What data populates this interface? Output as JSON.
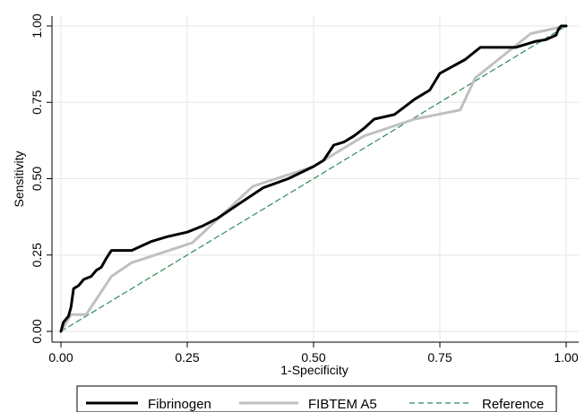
{
  "chart_data": {
    "type": "line",
    "title": "",
    "xlabel": "1-Specificity",
    "ylabel": "Sensitivity",
    "xlim": [
      0,
      1
    ],
    "ylim": [
      0,
      1
    ],
    "x_ticks": [
      "0.00",
      "0.25",
      "0.50",
      "0.75",
      "1.00"
    ],
    "y_ticks": [
      "0.00",
      "0.25",
      "0.50",
      "0.75",
      "1.00"
    ],
    "grid": true,
    "legend_position": "bottom",
    "series": [
      {
        "name": "Fibrinogen",
        "color": "#000000",
        "points": [
          [
            0.0,
            0.0
          ],
          [
            0.005,
            0.03
          ],
          [
            0.01,
            0.04
          ],
          [
            0.015,
            0.05
          ],
          [
            0.02,
            0.08
          ],
          [
            0.025,
            0.14
          ],
          [
            0.035,
            0.15
          ],
          [
            0.045,
            0.17
          ],
          [
            0.06,
            0.18
          ],
          [
            0.07,
            0.2
          ],
          [
            0.08,
            0.21
          ],
          [
            0.09,
            0.24
          ],
          [
            0.1,
            0.265
          ],
          [
            0.12,
            0.265
          ],
          [
            0.14,
            0.265
          ],
          [
            0.16,
            0.28
          ],
          [
            0.18,
            0.295
          ],
          [
            0.21,
            0.31
          ],
          [
            0.25,
            0.325
          ],
          [
            0.28,
            0.345
          ],
          [
            0.31,
            0.37
          ],
          [
            0.35,
            0.415
          ],
          [
            0.4,
            0.47
          ],
          [
            0.45,
            0.5
          ],
          [
            0.5,
            0.54
          ],
          [
            0.52,
            0.56
          ],
          [
            0.54,
            0.61
          ],
          [
            0.56,
            0.62
          ],
          [
            0.58,
            0.64
          ],
          [
            0.6,
            0.665
          ],
          [
            0.62,
            0.695
          ],
          [
            0.66,
            0.71
          ],
          [
            0.68,
            0.735
          ],
          [
            0.7,
            0.76
          ],
          [
            0.73,
            0.79
          ],
          [
            0.75,
            0.845
          ],
          [
            0.8,
            0.89
          ],
          [
            0.83,
            0.93
          ],
          [
            0.9,
            0.93
          ],
          [
            0.94,
            0.95
          ],
          [
            0.96,
            0.955
          ],
          [
            0.98,
            0.97
          ],
          [
            0.985,
            0.99
          ],
          [
            0.99,
            1.0
          ],
          [
            1.0,
            1.0
          ]
        ]
      },
      {
        "name": "FIBTEM A5",
        "color": "#c0c0c0",
        "points": [
          [
            0.0,
            0.0
          ],
          [
            0.02,
            0.055
          ],
          [
            0.05,
            0.055
          ],
          [
            0.1,
            0.18
          ],
          [
            0.14,
            0.225
          ],
          [
            0.26,
            0.29
          ],
          [
            0.38,
            0.475
          ],
          [
            0.5,
            0.54
          ],
          [
            0.6,
            0.64
          ],
          [
            0.7,
            0.695
          ],
          [
            0.79,
            0.725
          ],
          [
            0.82,
            0.83
          ],
          [
            0.93,
            0.975
          ],
          [
            1.0,
            1.0
          ]
        ]
      },
      {
        "name": "Reference",
        "color": "#2e8b57",
        "style": "dashed",
        "points": [
          [
            0.0,
            0.0
          ],
          [
            1.0,
            1.0
          ]
        ]
      }
    ]
  }
}
